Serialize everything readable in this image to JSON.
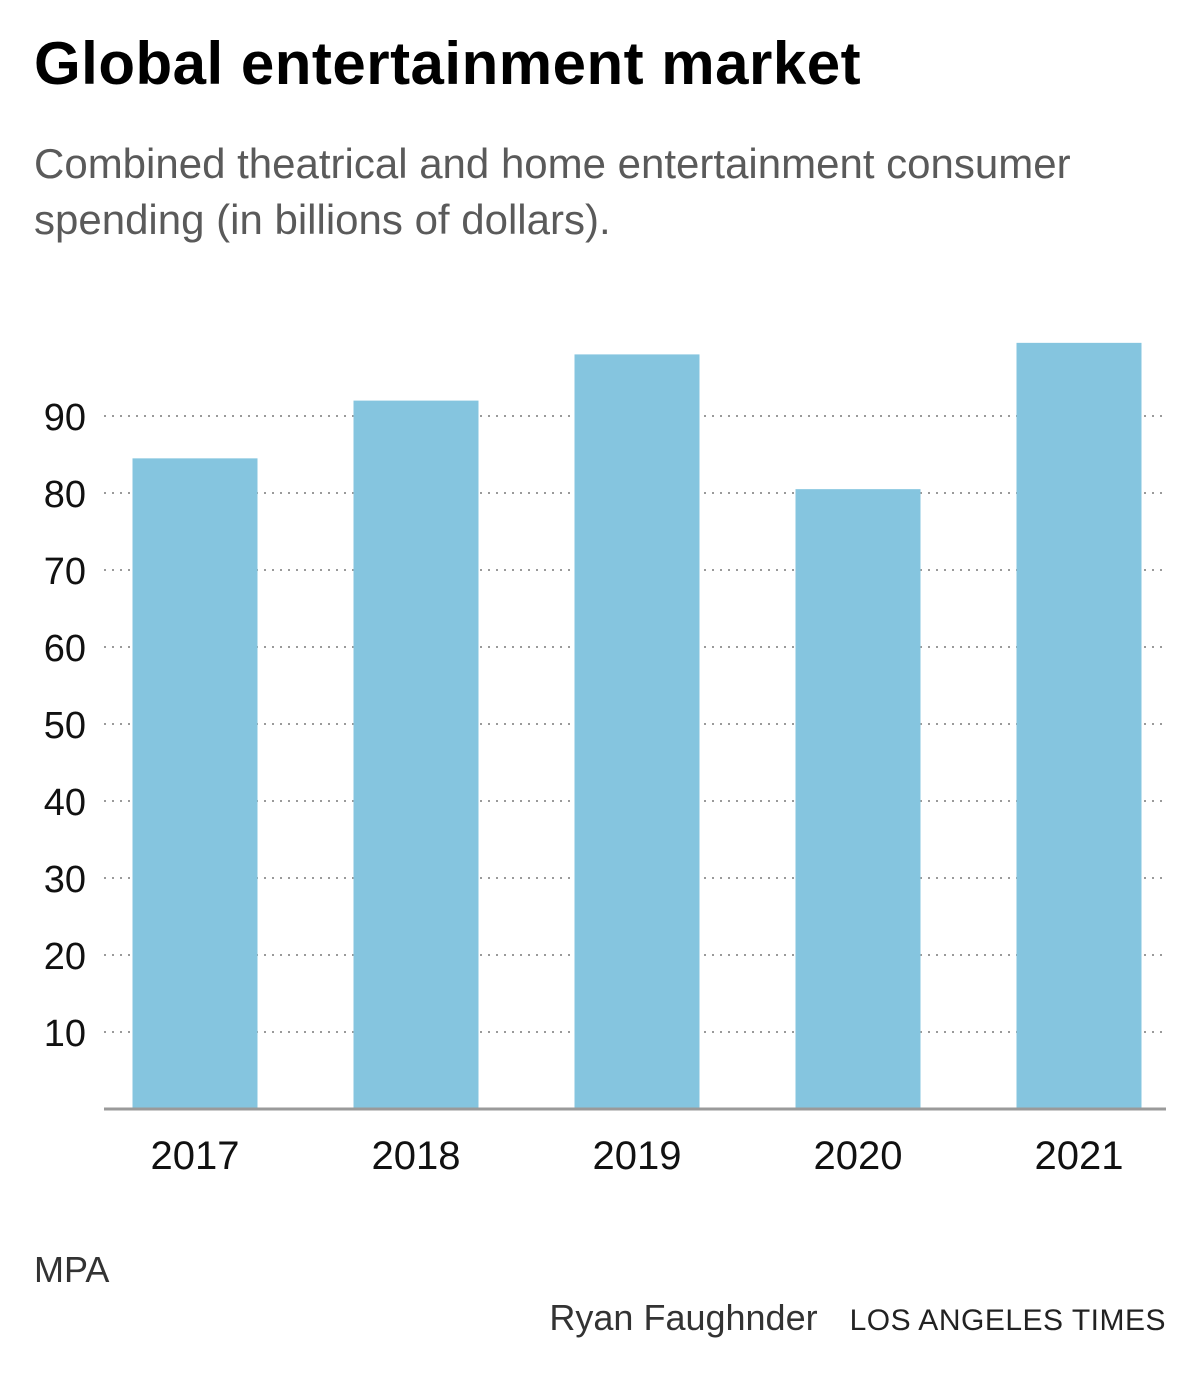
{
  "header": {
    "title": "Global entertainment market",
    "subtitle": "Combined theatrical and home entertainment consumer spending (in billions of dollars)."
  },
  "chart_data": {
    "type": "bar",
    "categories": [
      "2017",
      "2018",
      "2019",
      "2020",
      "2021"
    ],
    "values": [
      84.5,
      92,
      98,
      80.5,
      99.5
    ],
    "yticks": [
      10,
      20,
      30,
      40,
      50,
      60,
      70,
      80,
      90
    ],
    "ylim": [
      0,
      100
    ],
    "grid": true,
    "bar_color": "#85c5df",
    "grid_color": "#9a9a9a",
    "axis_color": "#9a9a9a",
    "xlabel": "",
    "ylabel": ""
  },
  "footer": {
    "source": "MPA",
    "author": "Ryan Faughnder",
    "outlet": "LOS ANGELES TIMES"
  }
}
